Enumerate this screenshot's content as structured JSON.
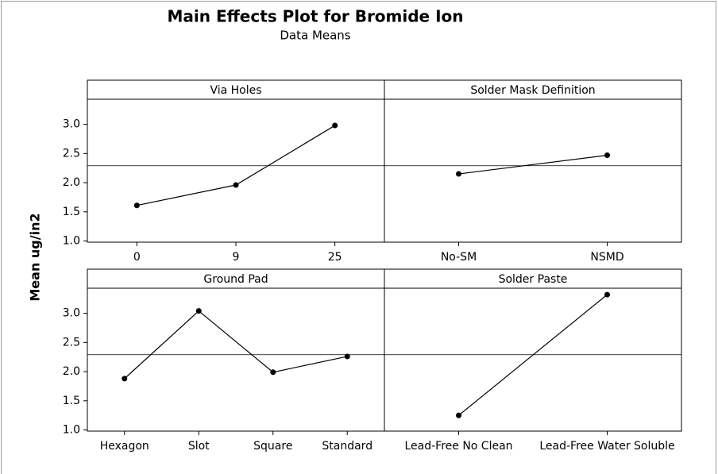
{
  "title": "Main Effects Plot for Bromide Ion",
  "subtitle": "Data Means",
  "y_axis": {
    "label": "Mean ug/in2",
    "ylim": [
      0.98,
      3.43
    ],
    "yticks": [
      {
        "value": 1,
        "label": "1.0"
      },
      {
        "value": 1.5,
        "label": "1.5"
      },
      {
        "value": 2,
        "label": "2.0"
      },
      {
        "value": 2.5,
        "label": "2.5"
      },
      {
        "value": 3,
        "label": "3.0"
      }
    ]
  },
  "mean": 2.29,
  "chart_data": [
    {
      "type": "line",
      "title": "Via Holes",
      "categories": [
        "0",
        "9",
        "25"
      ],
      "values": [
        1.61,
        1.96,
        2.98
      ],
      "color": "#000000"
    },
    {
      "type": "line",
      "title": "Solder Mask Definition",
      "categories": [
        "No-SM",
        "NSMD"
      ],
      "values": [
        2.15,
        2.47
      ],
      "color": "#000000"
    },
    {
      "type": "line",
      "title": "Ground Pad",
      "categories": [
        "Hexagon",
        "Slot",
        "Square",
        "Standard"
      ],
      "values": [
        1.88,
        3.04,
        1.99,
        2.26
      ],
      "color": "#000000"
    },
    {
      "type": "line",
      "title": "Solder Paste",
      "categories": [
        "Lead-Free No Clean",
        "Lead-Free Water Soluble"
      ],
      "values": [
        1.25,
        3.32
      ],
      "color": "#000000"
    }
  ]
}
